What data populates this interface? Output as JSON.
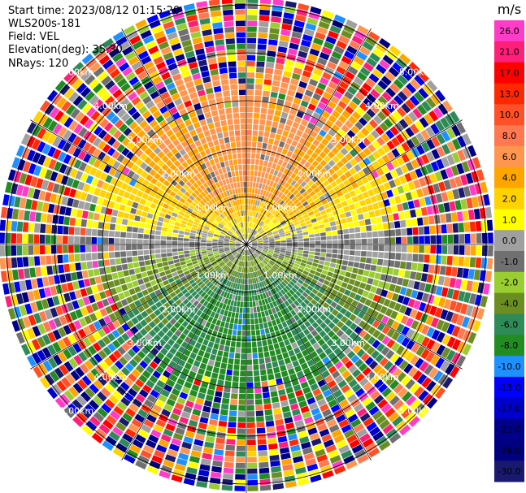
{
  "header": {
    "start_time": "Start time: 2023/08/12 01:15:20",
    "instrument": "WLS200s-181",
    "field": "Field: VEL",
    "elevation": "Elevation(deg): 35.30",
    "nrays": "NRays: 120"
  },
  "chart_data": {
    "type": "heatmap",
    "projection": "polar-ppi",
    "field": "VEL",
    "unit": "m/s",
    "n_rays": 120,
    "elevation_deg": 35.3,
    "range_rings_km": [
      1.0,
      2.0,
      3.0,
      4.0,
      5.0
    ],
    "ring_labels": [
      "1.00km",
      "2.00km",
      "3.00km",
      "4.00km",
      "5.00km"
    ],
    "ring_label_sets": [
      [
        "1.00km",
        "1.00km",
        "1.00km",
        "1.00km"
      ],
      [
        "2.00km",
        "2.00km",
        "2.00km",
        "2.00km"
      ],
      [
        "3.00km",
        "3.00km",
        "3.00km",
        "3.00km"
      ],
      [
        "4.00km",
        "4.00km",
        "4.00km",
        "4.00km"
      ],
      [
        "5.00km",
        "5.00km",
        "5.00km",
        "5.00km"
      ]
    ],
    "max_range_km": 5.2,
    "spokes_deg": [
      0,
      30,
      60,
      90,
      120,
      150,
      180,
      210,
      240,
      270,
      300,
      330
    ],
    "velocity_pattern": {
      "north_sector_ms": [
        4,
        10
      ],
      "south_sector_ms": [
        -8,
        -2
      ],
      "noise_beyond_km": 3.6
    },
    "colorbar": {
      "unit": "m/s",
      "ticks": [
        "26.0",
        "21.0",
        "17.0",
        "13.0",
        "10.0",
        "8.0",
        "6.0",
        "4.0",
        "2.0",
        "1.0",
        "0.0",
        "-1.0",
        "-2.0",
        "-4.0",
        "-6.0",
        "-8.0",
        "-10.0",
        "-13.0",
        "-17.0",
        "-21.0",
        "-26.0",
        "-30.0"
      ],
      "levels": [
        30,
        26,
        21,
        17,
        13,
        10,
        8,
        6,
        4,
        2,
        1,
        0,
        -1,
        -2,
        -4,
        -6,
        -8,
        -10,
        -13,
        -17,
        -21,
        -26,
        -30
      ],
      "colors": [
        "#ff3cc8",
        "#ff1e78",
        "#ff0000",
        "#ff2800",
        "#ff5028",
        "#ff7850",
        "#ff9650",
        "#ffa500",
        "#ffd200",
        "#ffff00",
        "#a0a0a0",
        "#707070",
        "#9acd32",
        "#6b8e23",
        "#2e8b57",
        "#228b22",
        "#1e90ff",
        "#0000ff",
        "#0000cd",
        "#00008b",
        "#000080",
        "#191970"
      ]
    }
  }
}
